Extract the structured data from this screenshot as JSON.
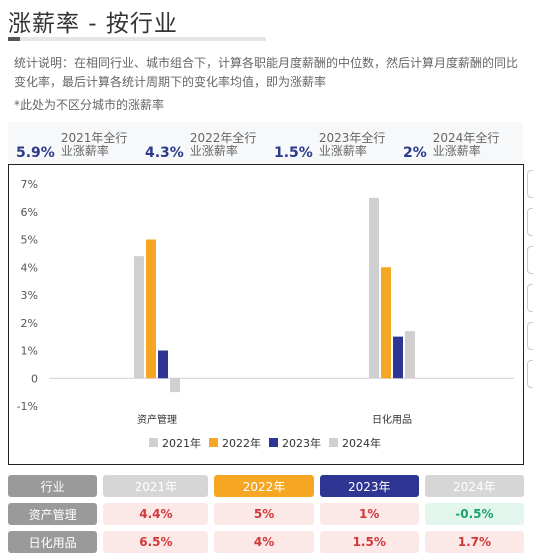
{
  "page": {
    "title": "涨薪率 - 按行业",
    "description": "统计说明：在相同行业、城市组合下，计算各职能月度薪酬的中位数，然后计算月度薪酬的同比变化率，最后计算各统计周期下的变化率均值，即为涨薪率",
    "note": "*此处为不区分城市的涨薪率"
  },
  "stats": [
    {
      "value": "5.9%",
      "label": "2021年全行业涨薪率"
    },
    {
      "value": "4.3%",
      "label": "2022年全行业涨薪率"
    },
    {
      "value": "1.5%",
      "label": "2023年全行业涨薪率"
    },
    {
      "value": "2%",
      "label": "2024年全行业涨薪率"
    }
  ],
  "chart_data": {
    "type": "bar",
    "categories": [
      "资产管理",
      "日化用品"
    ],
    "series": [
      {
        "name": "2021年",
        "values": [
          4.4,
          6.5
        ],
        "color": "#d0d0d0"
      },
      {
        "name": "2022年",
        "values": [
          5,
          4
        ],
        "color": "#f5a623"
      },
      {
        "name": "2023年",
        "values": [
          1,
          1.5
        ],
        "color": "#2e3592"
      },
      {
        "name": "2024年",
        "values": [
          -0.5,
          1.7
        ],
        "color": "#d0d0d0"
      }
    ],
    "ylim": [
      -1,
      7
    ],
    "yticks": [
      "7%",
      "6%",
      "5%",
      "4%",
      "3%",
      "2%",
      "1%",
      "0",
      "-1%"
    ],
    "legend": "bottom",
    "grid": false
  },
  "table": {
    "headers": [
      {
        "label": "行业",
        "bg": "#9a9a9a",
        "color": "#ffffff"
      },
      {
        "label": "2021年",
        "bg": "#d6d6d6",
        "color": "#ffffff"
      },
      {
        "label": "2022年",
        "bg": "#f5a623",
        "color": "#ffffff"
      },
      {
        "label": "2023年",
        "bg": "#2e3592",
        "color": "#ffffff"
      },
      {
        "label": "2024年",
        "bg": "#d6d6d6",
        "color": "#ffffff"
      }
    ],
    "rows": [
      {
        "industry": "资产管理",
        "values": [
          "4.4%",
          "5%",
          "1%",
          "-0.5%"
        ],
        "trend": [
          "up",
          "up",
          "up",
          "down"
        ]
      },
      {
        "industry": "日化用品",
        "values": [
          "6.5%",
          "4%",
          "1.5%",
          "1.7%"
        ],
        "trend": [
          "up",
          "up",
          "up",
          "up"
        ]
      }
    ]
  }
}
